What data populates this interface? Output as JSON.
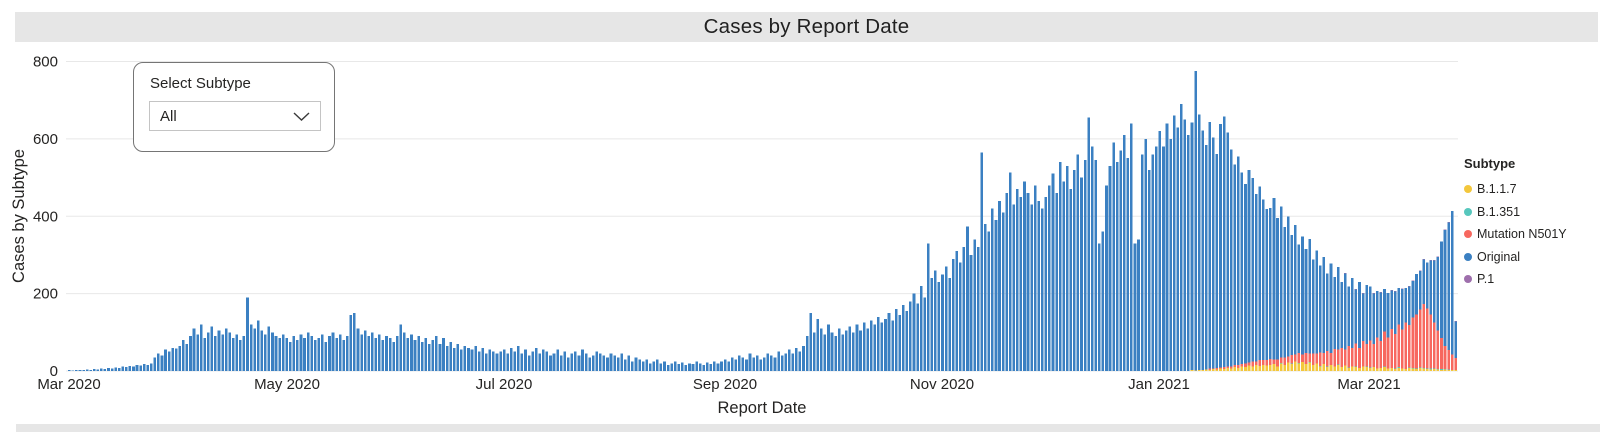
{
  "header": {
    "title": "Cases by Report Date"
  },
  "slicer": {
    "label": "Select Subtype",
    "value": "All"
  },
  "legend": {
    "title": "Subtype",
    "items": [
      {
        "label": "B.1.1.7",
        "color": "#F3C73C"
      },
      {
        "label": "B.1.351",
        "color": "#57C7BD"
      },
      {
        "label": "Mutation N501Y",
        "color": "#F7685F"
      },
      {
        "label": "Original",
        "color": "#3B80C2"
      },
      {
        "label": "P.1",
        "color": "#9E6FAC"
      }
    ]
  },
  "chart_data": {
    "type": "bar",
    "stacked": true,
    "title": "Cases by Report Date",
    "xlabel": "Report Date",
    "ylabel": "Cases by Subtype",
    "ylim": [
      0,
      800
    ],
    "yticks": [
      "800",
      "600",
      "400",
      "200",
      "0"
    ],
    "xticks": [
      "Mar 2020",
      "May 2020",
      "Jul 2020",
      "Sep 2020",
      "Nov 2020",
      "Jan 2021",
      "Mar 2021"
    ],
    "x_start": "2020-03-01",
    "x_frequency": "daily",
    "n_days": 390,
    "grid": "horizontal",
    "legend_position": "right",
    "colors": {
      "B.1.1.7": "#F3C73C",
      "B.1.351": "#57C7BD",
      "Mutation N501Y": "#F7685F",
      "Original": "#3B80C2",
      "P.1": "#9E6FAC"
    },
    "stack_order": [
      "B.1.1.7",
      "B.1.351",
      "Mutation N501Y",
      "Original",
      "P.1"
    ],
    "series": [
      {
        "name": "B.1.1.7",
        "zeros_before": 315,
        "values": [
          2,
          1,
          3,
          2,
          4,
          3,
          5,
          4,
          6,
          5,
          8,
          6,
          10,
          8,
          12,
          10,
          14,
          12,
          15,
          13,
          16,
          14,
          15,
          18,
          12,
          20,
          15,
          22,
          18,
          25,
          20,
          23,
          18,
          22,
          15,
          20,
          12,
          18,
          10,
          15,
          12,
          16,
          10,
          14,
          8,
          12,
          10,
          8,
          12,
          10,
          8,
          10,
          6,
          8,
          10,
          6,
          8,
          5,
          8,
          6,
          5,
          8,
          6,
          5,
          8,
          6,
          5,
          4,
          5,
          4,
          3,
          4,
          3,
          2,
          2
        ]
      },
      {
        "name": "B.1.351",
        "zeros_before": 337,
        "values": [
          1,
          0,
          0,
          1,
          0,
          0,
          2,
          0,
          1,
          0,
          0,
          1,
          0,
          0,
          1,
          0,
          2,
          0,
          0,
          1,
          0,
          0,
          1,
          0,
          1,
          0,
          0,
          2,
          1,
          0,
          1,
          0,
          2,
          1,
          0,
          1,
          2,
          1,
          0,
          1,
          2,
          1,
          1,
          2,
          1,
          2,
          1,
          1,
          2,
          1,
          1,
          1,
          1
        ]
      },
      {
        "name": "Mutation N501Y",
        "zeros_before": 320,
        "values": [
          3,
          2,
          4,
          3,
          5,
          4,
          6,
          5,
          8,
          6,
          10,
          8,
          12,
          10,
          15,
          12,
          14,
          15,
          12,
          18,
          14,
          20,
          16,
          22,
          18,
          25,
          20,
          28,
          22,
          30,
          25,
          35,
          28,
          40,
          32,
          45,
          38,
          50,
          42,
          55,
          48,
          60,
          52,
          65,
          58,
          70,
          60,
          80,
          70,
          90,
          80,
          100,
          90,
          110,
          100,
          120,
          110,
          130,
          140,
          150,
          165,
          155,
          140,
          120,
          100,
          80,
          60,
          50,
          40,
          30
        ]
      },
      {
        "name": "Original",
        "zeros_before": 0,
        "values": [
          2,
          1,
          2,
          3,
          2,
          4,
          3,
          5,
          4,
          6,
          5,
          8,
          6,
          9,
          8,
          11,
          10,
          13,
          12,
          15,
          14,
          18,
          16,
          20,
          35,
          45,
          40,
          55,
          50,
          60,
          58,
          65,
          80,
          70,
          90,
          110,
          95,
          120,
          85,
          100,
          115,
          90,
          105,
          95,
          110,
          100,
          85,
          95,
          80,
          90,
          190,
          120,
          110,
          130,
          105,
          95,
          115,
          100,
          90,
          85,
          95,
          85,
          75,
          90,
          80,
          95,
          85,
          100,
          90,
          80,
          85,
          95,
          75,
          90,
          100,
          85,
          95,
          80,
          90,
          145,
          150,
          110,
          95,
          105,
          90,
          100,
          85,
          95,
          80,
          90,
          85,
          75,
          90,
          120,
          100,
          85,
          95,
          80,
          90,
          75,
          85,
          70,
          80,
          90,
          70,
          85,
          65,
          75,
          60,
          70,
          55,
          65,
          60,
          55,
          65,
          50,
          60,
          45,
          55,
          50,
          45,
          50,
          55,
          45,
          60,
          50,
          65,
          45,
          55,
          40,
          50,
          60,
          45,
          55,
          50,
          40,
          45,
          55,
          40,
          50,
          35,
          45,
          50,
          40,
          55,
          45,
          35,
          40,
          50,
          45,
          40,
          35,
          45,
          40,
          35,
          45,
          30,
          40,
          25,
          35,
          30,
          25,
          30,
          20,
          25,
          30,
          20,
          25,
          15,
          20,
          25,
          18,
          22,
          15,
          20,
          18,
          25,
          20,
          15,
          22,
          18,
          25,
          20,
          25,
          30,
          25,
          35,
          30,
          40,
          35,
          30,
          45,
          35,
          40,
          30,
          35,
          45,
          40,
          35,
          50,
          40,
          45,
          55,
          45,
          60,
          50,
          65,
          90,
          150,
          100,
          135,
          110,
          95,
          120,
          100,
          90,
          110,
          95,
          105,
          115,
          100,
          120,
          105,
          125,
          110,
          130,
          120,
          140,
          125,
          135,
          150,
          130,
          160,
          145,
          170,
          155,
          180,
          200,
          175,
          220,
          190,
          330,
          240,
          260,
          230,
          250,
          270,
          240,
          290,
          310,
          280,
          320,
          373,
          300,
          340,
          320,
          565,
          380,
          360,
          420,
          390,
          440,
          410,
          460,
          513,
          430,
          470,
          450,
          490,
          460,
          430,
          480,
          440,
          420,
          450,
          480,
          510,
          460,
          540,
          490,
          530,
          470,
          520,
          560,
          500,
          545,
          655,
          580,
          545,
          330,
          360,
          480,
          530,
          590,
          540,
          570,
          610,
          550,
          640,
          330,
          340,
          560,
          600,
          520,
          560,
          580,
          620,
          580,
          640,
          600,
          660,
          630,
          690,
          650,
          610,
          640,
          775,
          660,
          620,
          580,
          637,
          597,
          553,
          630,
          648,
          605,
          561,
          519,
          538,
          495,
          463,
          498,
          475,
          432,
          449,
          415,
          391,
          390,
          417,
          365,
          390,
          337,
          362,
          310,
          335,
          281,
          305,
          270,
          296,
          243,
          267,
          225,
          249,
          200,
          231,
          186,
          214,
          170,
          196,
          155,
          180,
          140,
          170,
          123,
          152,
          140,
          130,
          120,
          125,
          110,
          115,
          100,
          110,
          95,
          105,
          90,
          100,
          95,
          105,
          100,
          115,
          120,
          140,
          160,
          190,
          250,
          300,
          330,
          370,
          95
        ]
      },
      {
        "name": "P.1",
        "zeros_before": 358,
        "values": [
          1,
          0,
          0,
          1,
          0,
          1,
          0,
          0,
          1,
          0,
          1,
          0,
          0,
          1,
          1,
          0,
          1,
          0,
          1,
          1,
          0,
          1,
          1,
          0,
          1,
          1,
          1,
          0,
          1,
          1,
          1,
          1
        ]
      }
    ]
  }
}
